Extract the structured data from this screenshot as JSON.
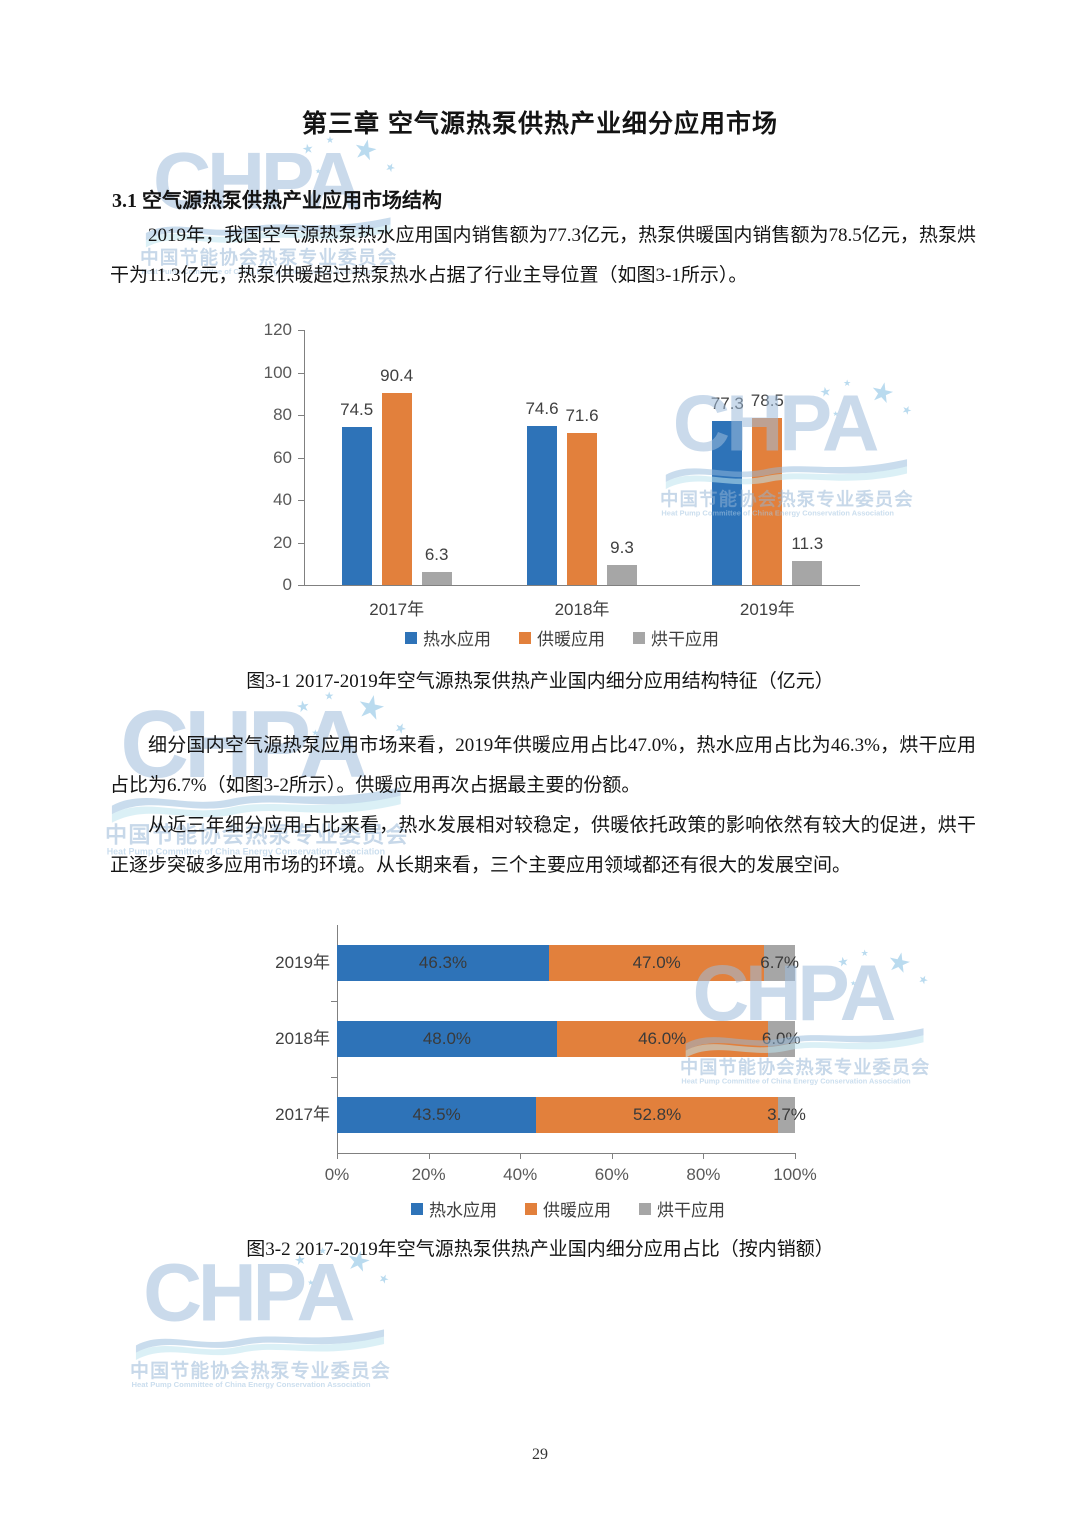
{
  "document": {
    "title": "第三章 空气源热泵供热产业细分应用市场",
    "section_heading": "3.1 空气源热泵供热产业应用市场结构",
    "paragraph_1": "2019年，我国空气源热泵热水应用国内销售额为77.3亿元，热泵供暖国内销售额为78.5亿元，热泵烘干为11.3亿元，热泵供暖超过热泵热水占据了行业主导位置（如图3-1所示）。",
    "figure1_caption": "图3-1 2017-2019年空气源热泵供热产业国内细分应用结构特征（亿元）",
    "paragraph_2": "细分国内空气源热泵应用市场来看，2019年供暖应用占比47.0%，热水应用占比为46.3%，烘干应用占比为6.7%（如图3-2所示）。供暖应用再次占据最主要的份额。",
    "paragraph_3": "从近三年细分应用占比来看，热水发展相对较稳定，供暖依托政策的影响依然有较大的促进，烘干正逐步突破多应用市场的环境。从长期来看，三个主要应用领域都还有很大的发展空间。",
    "figure2_caption": "图3-2 2017-2019年空气源热泵供热产业国内细分应用占比（按内销额）",
    "page_number": "29"
  },
  "watermark": {
    "logo_text": "CHPA",
    "cn_text": "中国节能协会热泵专业委员会",
    "en_text": "Heat Pump Committee of China Energy Conservation Association"
  },
  "colors": {
    "hot_water_blue": "#2e73b8",
    "heating_orange": "#e2803c",
    "drying_gray": "#a6a6a6",
    "axis_gray": "#808080",
    "label_gray": "#404040",
    "watermark_blue": "#c2d3e6"
  },
  "chart_data": [
    {
      "id": "figure-3-1",
      "type": "bar",
      "orientation": "vertical-grouped",
      "title": "图3-1 2017-2019年空气源热泵供热产业国内细分应用结构特征（亿元）",
      "unit": "亿元",
      "categories": [
        "2017年",
        "2018年",
        "2019年"
      ],
      "series": [
        {
          "name": "热水应用",
          "color": "#2e73b8",
          "values": [
            74.5,
            74.6,
            77.3
          ]
        },
        {
          "name": "供暖应用",
          "color": "#e2803c",
          "values": [
            90.4,
            71.6,
            78.5
          ]
        },
        {
          "name": "烘干应用",
          "color": "#a6a6a6",
          "values": [
            6.3,
            9.3,
            11.3
          ]
        }
      ],
      "ylim": [
        0,
        120
      ],
      "yticks": [
        0,
        20,
        40,
        60,
        80,
        100,
        120
      ],
      "grid": false,
      "value_labels": true,
      "legend_position": "bottom"
    },
    {
      "id": "figure-3-2",
      "type": "bar",
      "orientation": "horizontal-stacked",
      "title": "图3-2 2017-2019年空气源热泵供热产业国内细分应用占比（按内销额）",
      "categories": [
        "2019年",
        "2018年",
        "2017年"
      ],
      "series": [
        {
          "name": "热水应用",
          "color": "#2e73b8",
          "values": [
            46.3,
            48.0,
            43.5
          ]
        },
        {
          "name": "供暖应用",
          "color": "#e2803c",
          "values": [
            47.0,
            46.0,
            52.8
          ]
        },
        {
          "name": "烘干应用",
          "color": "#a6a6a6",
          "values": [
            6.7,
            6.0,
            3.7
          ]
        }
      ],
      "xlim": [
        0,
        100
      ],
      "xtick_labels": [
        "0%",
        "20%",
        "40%",
        "60%",
        "80%",
        "100%"
      ],
      "grid": false,
      "value_labels": true,
      "value_suffix": "%",
      "legend_position": "bottom"
    }
  ]
}
